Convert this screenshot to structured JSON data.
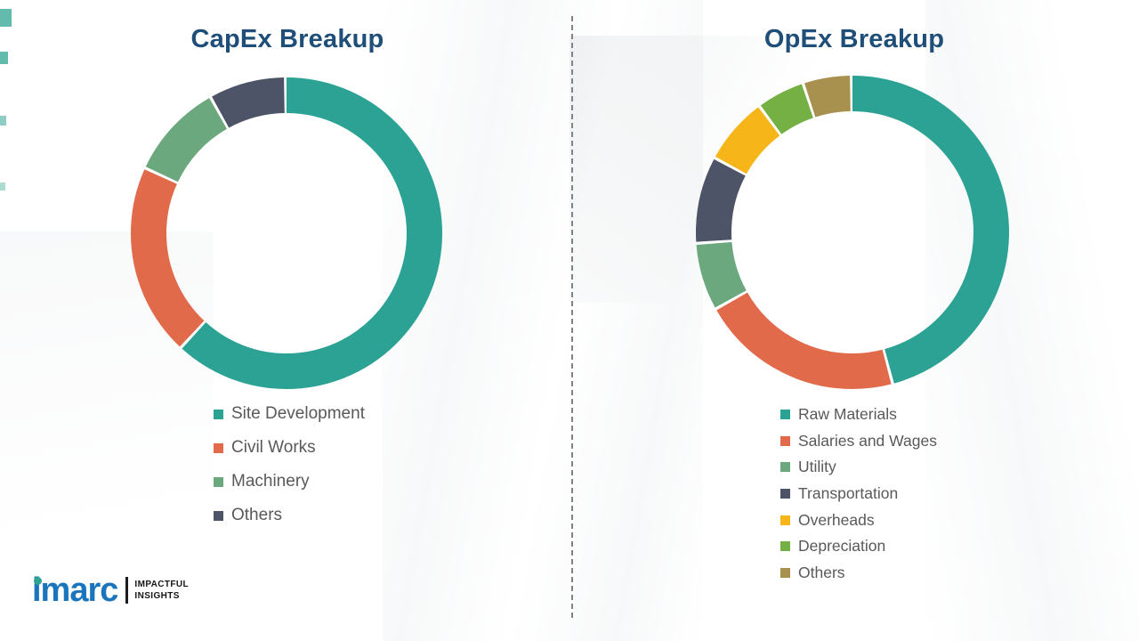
{
  "chart_data": [
    {
      "type": "pie",
      "donut": true,
      "title": "CapEx Breakup",
      "legend_position": "bottom",
      "categories": [
        "Site Development",
        "Civil Works",
        "Machinery",
        "Others"
      ],
      "values": [
        62,
        20,
        10,
        8
      ],
      "colors": [
        "#2ca294",
        "#e16a4b",
        "#6ca87e",
        "#4e5468"
      ],
      "title_color": "#1f4e79"
    },
    {
      "type": "pie",
      "donut": true,
      "title": "OpEx Breakup",
      "legend_position": "bottom",
      "categories": [
        "Raw Materials",
        "Salaries and Wages",
        "Utility",
        "Transportation",
        "Overheads",
        "Depreciation",
        "Others"
      ],
      "values": [
        46,
        21,
        7,
        9,
        7,
        5,
        5
      ],
      "colors": [
        "#2ca294",
        "#e16a4b",
        "#6ca87e",
        "#4e5468",
        "#f6b519",
        "#74b043",
        "#a8904f"
      ],
      "title_color": "#1f4e79"
    }
  ],
  "logo": {
    "name": "imarc",
    "tagline_line1": "IMPACTFUL",
    "tagline_line2": "INSIGHTS",
    "brand_color": "#1a75bc",
    "accent_color": "#2fa493"
  }
}
